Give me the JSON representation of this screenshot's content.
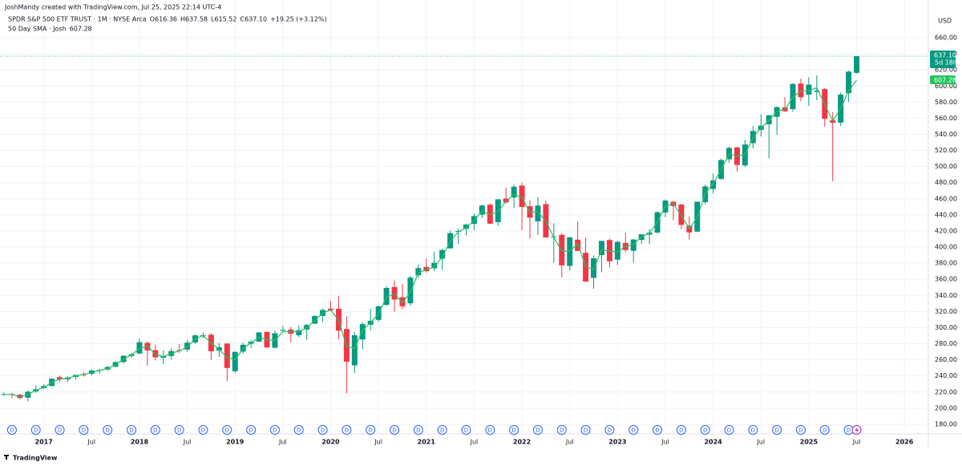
{
  "chart_data": {
    "type": "candlestick",
    "attribution": "JoshMandy created with TradingView.com, Jul 25, 2025 22:14 UTC-4",
    "title": "SPDR S&P 500 ETF TRUST · 1M · NYSE Arca",
    "ohlc_letters": [
      "O",
      "H",
      "L",
      "C"
    ],
    "last_price_label": "637.10",
    "change_label": "+19.25 (+3.12%)",
    "countdown": "5d 18h",
    "currency": "USD",
    "footer": "TradingView",
    "dividend_marker": "D",
    "up_color": "#089981",
    "down_color": "#f23645",
    "open": [
      217.2,
      217.4,
      216.6,
      212.9,
      220.7,
      225.0,
      227.5,
      238.4,
      235.8,
      238.7,
      241.9,
      242.6,
      247.5,
      247.9,
      251.5,
      257.3,
      264.8,
      267.8,
      281.1,
      272.0,
      262.6,
      264.8,
      272.2,
      272.8,
      281.6,
      290.6,
      291.2,
      271.6,
      280.3,
      245.9,
      270.2,
      280.0,
      282.6,
      294.7,
      275.0,
      296.7,
      297.6,
      290.6,
      297.7,
      304.9,
      314.6,
      323.5,
      323.4,
      298.2,
      253.2,
      285.3,
      303.6,
      309.6,
      328.3,
      350.4,
      337.7,
      330.2,
      365.0,
      375.3,
      373.7,
      385.6,
      398.4,
      419.4,
      422.6,
      428.9,
      440.3,
      452.6,
      431.0,
      460.3,
      461.6,
      476.3,
      450.7,
      432.0,
      453.3,
      412.1,
      415.2,
      376.6,
      409.2,
      392.9,
      361.8,
      390.1,
      408.8,
      384.4,
      405.2,
      395.4,
      408.9,
      415.5,
      418.1,
      442.9,
      456.3,
      452.8,
      426.6,
      419.2,
      455.8,
      472.2,
      484.6,
      509.0,
      523.8,
      501.4,
      529.0,
      545.6,
      552.6,
      561.7,
      573.4,
      571.3,
      603.0,
      589.4,
      592.7,
      596.2,
      557.4,
      554.5,
      591.3,
      616.36
    ],
    "high": [
      219.6,
      218.9,
      217.9,
      222.0,
      228.3,
      229.7,
      237.3,
      240.3,
      239.5,
      240.9,
      245.0,
      248.0,
      248.9,
      252.3,
      258.4,
      266.1,
      268.6,
      286.6,
      283.1,
      278.9,
      271.6,
      274.3,
      279.5,
      284.4,
      291.7,
      293.9,
      293.2,
      281.2,
      280.4,
      270.5,
      281.3,
      284.4,
      294.5,
      294.9,
      296.3,
      302.2,
      300.9,
      302.6,
      304.6,
      315.5,
      323.8,
      332.9,
      339.1,
      313.8,
      294.9,
      306.8,
      323.4,
      327.2,
      351.3,
      358.8,
      354.0,
      364.4,
      378.5,
      385.9,
      394.2,
      398.0,
      420.7,
      422.8,
      428.8,
      441.8,
      453.1,
      454.1,
      459.6,
      473.5,
      477.6,
      480.0,
      458.1,
      462.1,
      457.8,
      429.7,
      417.4,
      413.0,
      431.7,
      411.7,
      389.5,
      407.7,
      410.5,
      408.2,
      418.3,
      410.0,
      415.9,
      422.6,
      444.3,
      459.4,
      457.3,
      453.7,
      438.1,
      456.4,
      477.6,
      491.6,
      510.1,
      524.6,
      524.4,
      533.1,
      550.3,
      565.2,
      564.2,
      574.7,
      586.1,
      603.4,
      609.1,
      610.8,
      613.2,
      597.3,
      567.5,
      592.0,
      619.2,
      637.58
    ],
    "low": [
      215.4,
      212.3,
      211.2,
      208.4,
      219.0,
      223.9,
      226.9,
      232.5,
      232.5,
      235.4,
      239.0,
      240.5,
      242.8,
      246.2,
      251.0,
      255.5,
      262.5,
      267.4,
      252.9,
      259.1,
      254.7,
      260.2,
      268.5,
      270.0,
      280.0,
      287.0,
      259.9,
      263.9,
      233.8,
      244.0,
      267.8,
      274.9,
      282.2,
      275.3,
      274.5,
      295.0,
      281.7,
      288.0,
      284.8,
      304.7,
      307.1,
      320.4,
      285.5,
      218.3,
      243.9,
      273.0,
      296.7,
      307.3,
      327.0,
      319.8,
      322.6,
      327.2,
      362.0,
      368.3,
      370.4,
      371.9,
      398.2,
      404.0,
      414.7,
      421.0,
      436.1,
      428.8,
      426.4,
      454.3,
      448.9,
      420.8,
      410.6,
      415.1,
      412.0,
      380.5,
      362.2,
      371.0,
      395.0,
      357.0,
      348.1,
      368.8,
      374.8,
      377.8,
      393.6,
      380.7,
      403.8,
      403.7,
      416.8,
      437.1,
      433.0,
      422.3,
      409.2,
      418.6,
      453.3,
      466.4,
      484.0,
      504.9,
      493.9,
      499.6,
      522.6,
      537.4,
      510.3,
      539.4,
      567.9,
      567.9,
      580.9,
      575.4,
      582.4,
      549.7,
      481.8,
      550.6,
      580.3,
      615.52
    ],
    "close": [
      217.4,
      216.3,
      212.6,
      220.4,
      223.5,
      227.5,
      236.5,
      235.7,
      238.1,
      241.4,
      241.8,
      246.8,
      247.5,
      251.2,
      257.2,
      265.0,
      266.9,
      281.9,
      271.7,
      263.2,
      264.5,
      270.9,
      271.3,
      281.3,
      290.3,
      290.7,
      270.6,
      275.7,
      249.9,
      269.9,
      278.7,
      282.5,
      294.0,
      275.3,
      293.0,
      297.4,
      292.5,
      296.8,
      303.3,
      314.3,
      321.9,
      321.7,
      296.3,
      257.8,
      290.5,
      304.3,
      308.4,
      326.5,
      349.3,
      334.9,
      326.5,
      362.1,
      373.9,
      370.1,
      380.4,
      396.3,
      417.3,
      420.0,
      428.1,
      438.5,
      451.6,
      429.1,
      459.3,
      455.6,
      475.0,
      449.9,
      436.6,
      451.6,
      412.0,
      412.9,
      377.3,
      412.0,
      395.2,
      357.2,
      386.2,
      407.7,
      382.4,
      406.5,
      396.3,
      409.4,
      415.9,
      417.9,
      443.3,
      457.8,
      451.0,
      427.5,
      418.2,
      456.4,
      475.3,
      482.9,
      508.1,
      523.1,
      502.0,
      527.4,
      544.2,
      550.8,
      563.7,
      573.8,
      568.6,
      602.6,
      586.1,
      601.8,
      594.2,
      559.4,
      554.5,
      589.4,
      617.9,
      637.1
    ],
    "sma": {
      "name": "50 Day SMA · Josh",
      "color": "#22c55e",
      "values": [
        217,
        217,
        214,
        217,
        222,
        226,
        232,
        236,
        237,
        240,
        242,
        244,
        247,
        249,
        254,
        261,
        266,
        274,
        277,
        267,
        264,
        268,
        271,
        276,
        286,
        290,
        281,
        273,
        263,
        260,
        274,
        281,
        288,
        285,
        284,
        295,
        295,
        295,
        300,
        309,
        318,
        322,
        309,
        277,
        274,
        297,
        306,
        317,
        338,
        342,
        331,
        344,
        368,
        372,
        375,
        388,
        407,
        419,
        424,
        433,
        445,
        440,
        444,
        457,
        465,
        462,
        443,
        444,
        432,
        412,
        395,
        395,
        404,
        376,
        372,
        397,
        395,
        394,
        401,
        403,
        413,
        417,
        431,
        451,
        454,
        439,
        423,
        437,
        466,
        479,
        496,
        516,
        513,
        515,
        536,
        548,
        557,
        569,
        571,
        586,
        594,
        594,
        598,
        577,
        557,
        572,
        594,
        607.28
      ]
    },
    "xlim": [
      -0.5,
      116
    ],
    "xticks": [
      {
        "value": 5,
        "label": "2017"
      },
      {
        "value": 11,
        "label": "Jul"
      },
      {
        "value": 17,
        "label": "2018"
      },
      {
        "value": 23,
        "label": "Jul"
      },
      {
        "value": 29,
        "label": "2019"
      },
      {
        "value": 35,
        "label": "Jul"
      },
      {
        "value": 41,
        "label": "2020"
      },
      {
        "value": 47,
        "label": "Jul"
      },
      {
        "value": 53,
        "label": "2021"
      },
      {
        "value": 59,
        "label": "Jul"
      },
      {
        "value": 65,
        "label": "2022"
      },
      {
        "value": 71,
        "label": "Jul"
      },
      {
        "value": 77,
        "label": "2023"
      },
      {
        "value": 83,
        "label": "Jul"
      },
      {
        "value": 89,
        "label": "2024"
      },
      {
        "value": 95,
        "label": "Jul"
      },
      {
        "value": 101,
        "label": "2025"
      },
      {
        "value": 107,
        "label": "Jul"
      },
      {
        "value": 113,
        "label": "2026"
      }
    ],
    "ylim": [
      168,
      667
    ],
    "yticks": [
      {
        "value": 180,
        "label": "180.00"
      },
      {
        "value": 200,
        "label": "200.00"
      },
      {
        "value": 220,
        "label": "220.00"
      },
      {
        "value": 240,
        "label": "240.00"
      },
      {
        "value": 260,
        "label": "260.00"
      },
      {
        "value": 280,
        "label": "280.00"
      },
      {
        "value": 300,
        "label": "300.00"
      },
      {
        "value": 320,
        "label": "320.00"
      },
      {
        "value": 340,
        "label": "340.00"
      },
      {
        "value": 360,
        "label": "360.00"
      },
      {
        "value": 380,
        "label": "380.00"
      },
      {
        "value": 400,
        "label": "400.00"
      },
      {
        "value": 420,
        "label": "420.00"
      },
      {
        "value": 440,
        "label": "440.00"
      },
      {
        "value": 460,
        "label": "460.00"
      },
      {
        "value": 480,
        "label": "480.00"
      },
      {
        "value": 500,
        "label": "500.00"
      },
      {
        "value": 520,
        "label": "520.00"
      },
      {
        "value": 540,
        "label": "540.00"
      },
      {
        "value": 560,
        "label": "560.00"
      },
      {
        "value": 580,
        "label": "580.00"
      },
      {
        "value": 600,
        "label": "600.00"
      },
      {
        "value": 620,
        "label": "620.00"
      },
      {
        "value": 640,
        "label": "640.00"
      },
      {
        "value": 660,
        "label": "660.00"
      }
    ],
    "grid": true
  }
}
